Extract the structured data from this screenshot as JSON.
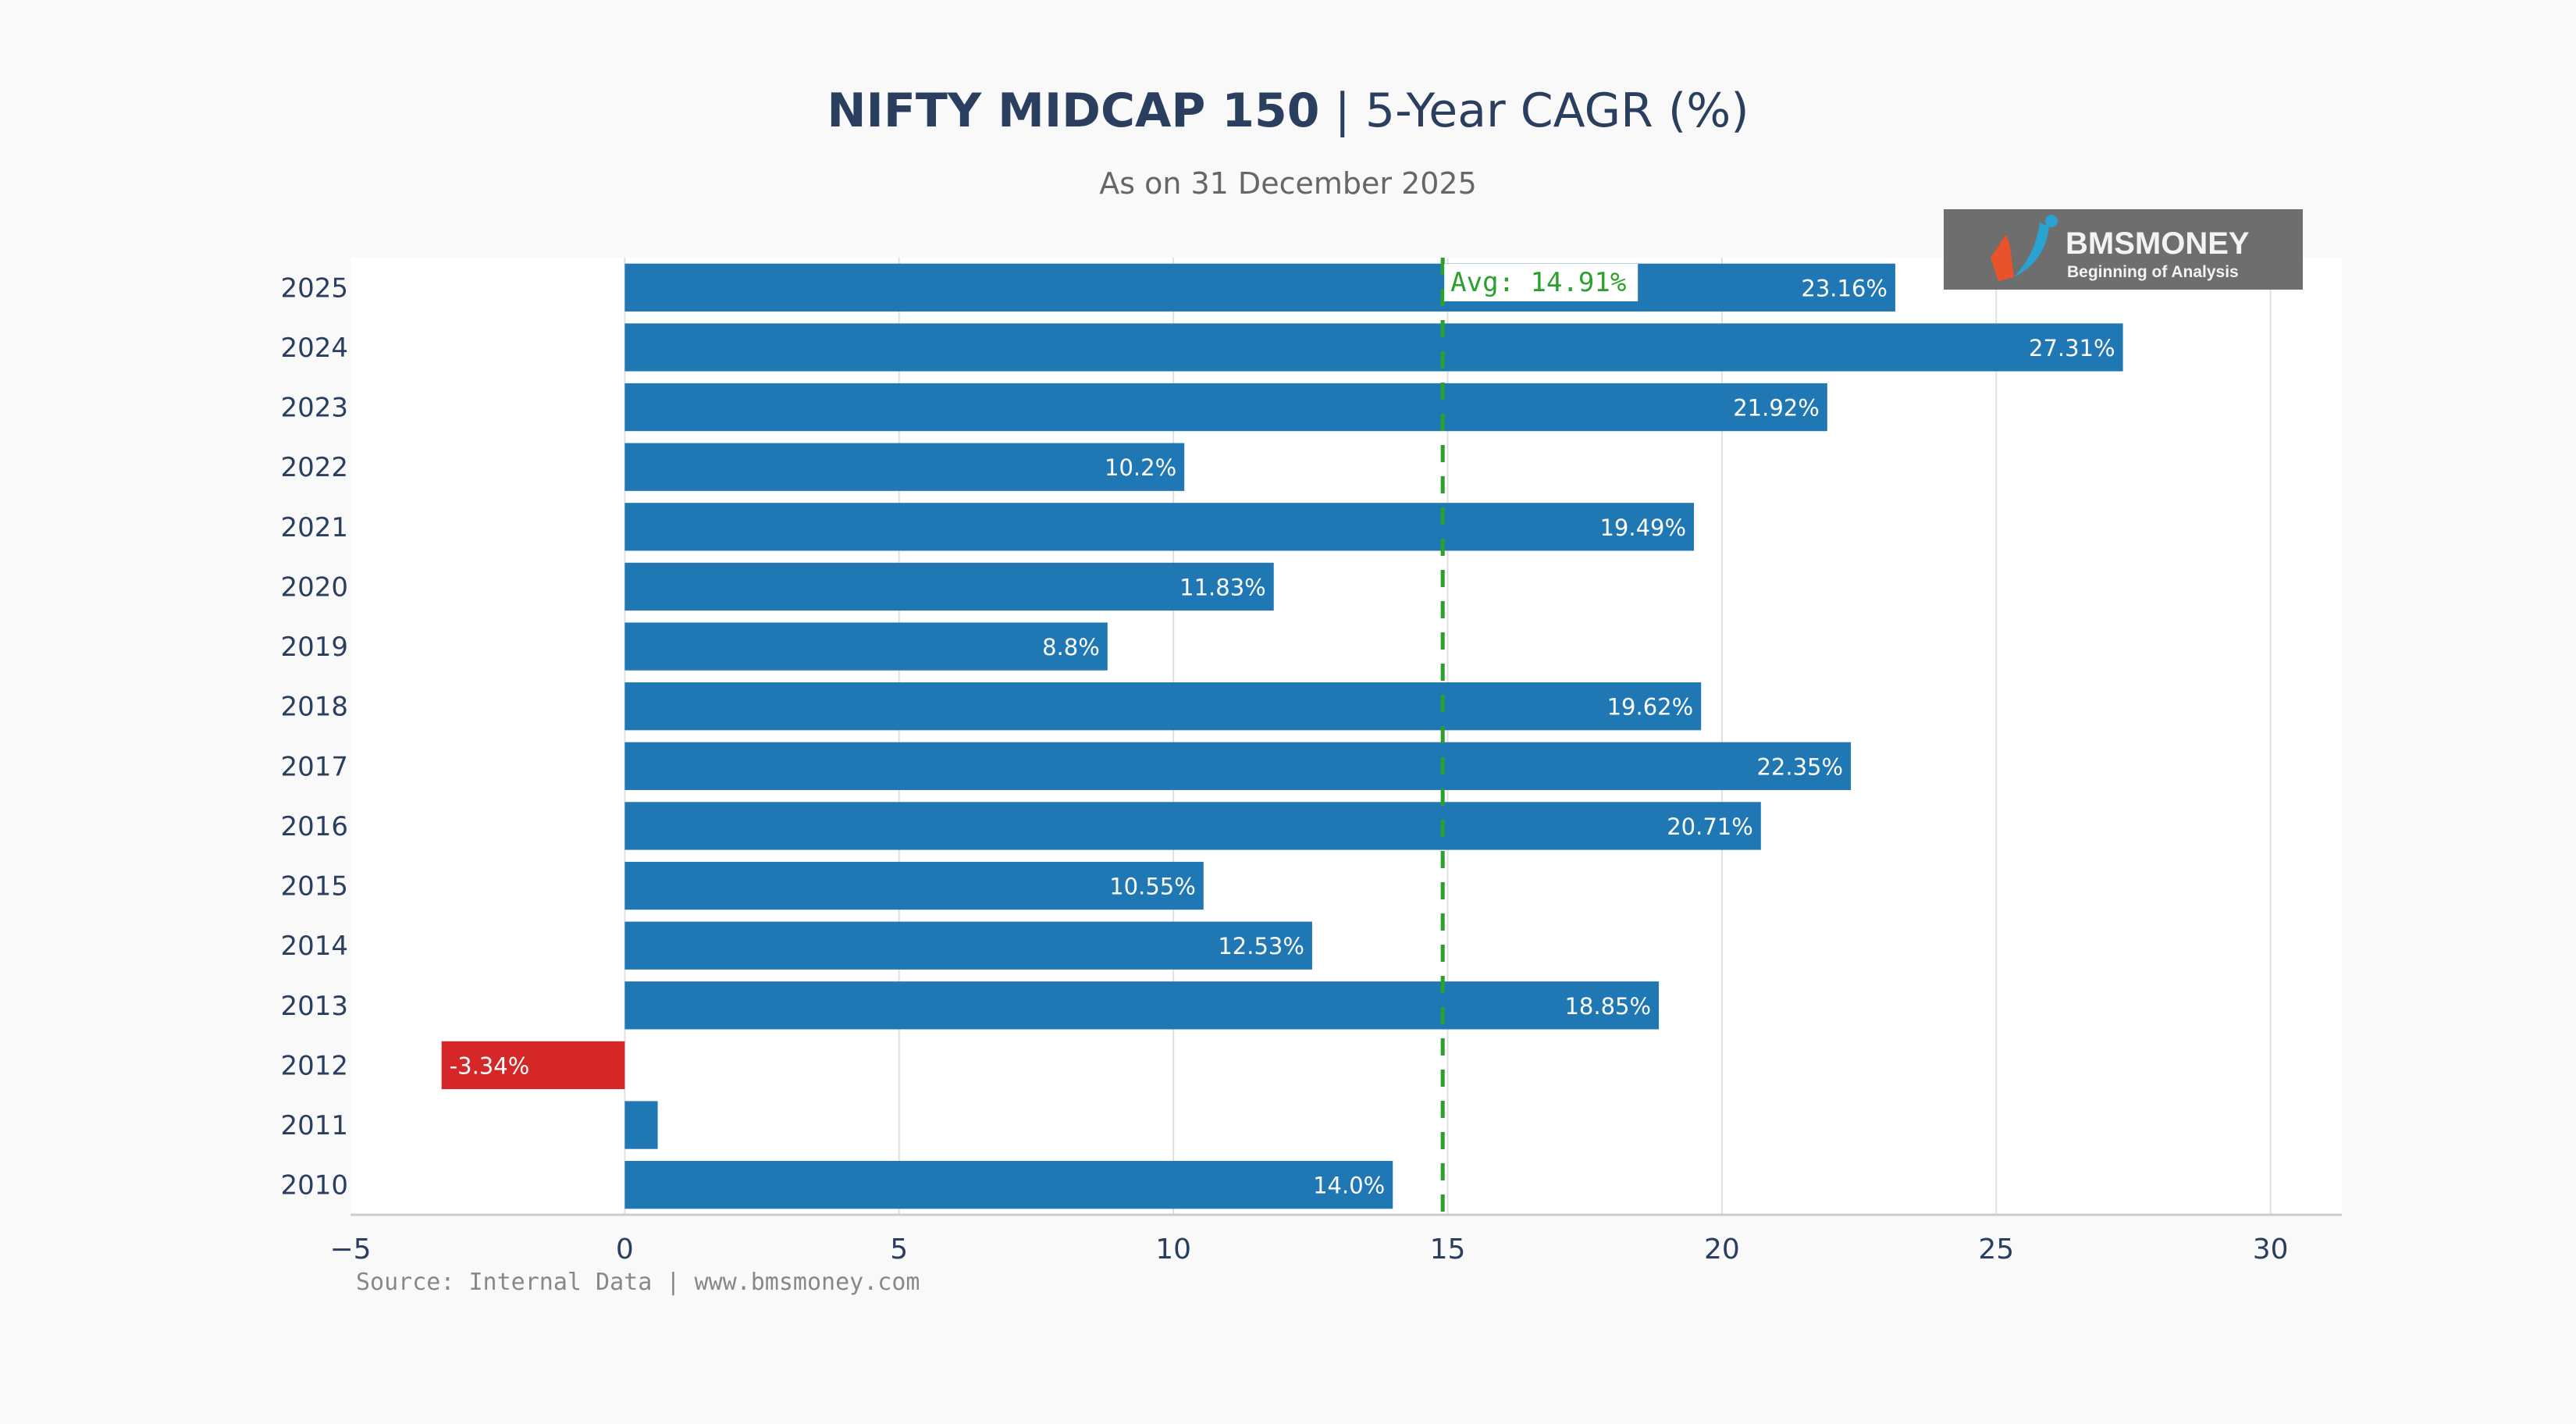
{
  "chart_data": {
    "type": "bar",
    "orientation": "horizontal",
    "title_bold": "NIFTY MIDCAP 150",
    "title_rest": " | 5-Year CAGR (%)",
    "subtitle": "As on 31 December 2025",
    "categories": [
      "2025",
      "2024",
      "2023",
      "2022",
      "2021",
      "2020",
      "2019",
      "2018",
      "2017",
      "2016",
      "2015",
      "2014",
      "2013",
      "2012",
      "2011",
      "2010"
    ],
    "values": [
      23.16,
      27.31,
      21.92,
      10.2,
      19.49,
      11.83,
      8.8,
      19.62,
      22.35,
      20.71,
      10.55,
      12.53,
      18.85,
      -3.34,
      0.6,
      14.0
    ],
    "data_labels": [
      "23.16%",
      "27.31%",
      "21.92%",
      "10.2%",
      "19.49%",
      "11.83%",
      "8.8%",
      "19.62%",
      "22.35%",
      "20.71%",
      "10.55%",
      "12.53%",
      "18.85%",
      "-3.34%",
      "",
      "14.0%"
    ],
    "xlim": [
      -5,
      31.3
    ],
    "xticks": [
      -5,
      0,
      5,
      10,
      15,
      20,
      25,
      30
    ],
    "xtick_labels": [
      "−5",
      "0",
      "5",
      "10",
      "15",
      "20",
      "25",
      "30"
    ],
    "grid": true,
    "average": {
      "value": 14.91,
      "label": "Avg: 14.91%",
      "color": "#2ca02c"
    },
    "colors": {
      "positive": "#1f77b4",
      "negative": "#d62728"
    },
    "source": "Source: Internal Data | www.bmsmoney.com"
  },
  "logo": {
    "name": "BMSMONEY",
    "tagline": "Beginning of Analysis"
  }
}
